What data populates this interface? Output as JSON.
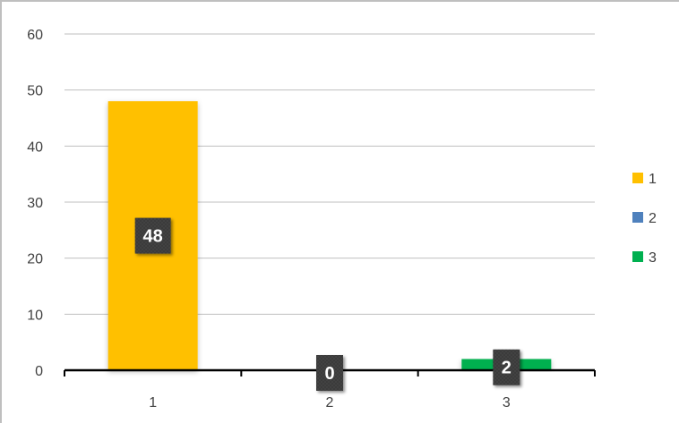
{
  "chart_data": {
    "type": "bar",
    "categories": [
      "1",
      "2",
      "3"
    ],
    "values": [
      48,
      0,
      2
    ],
    "data_labels": [
      "48",
      "0",
      "2"
    ],
    "series_colors": [
      "#FFC000",
      "#4F81BD",
      "#00B050"
    ],
    "ylim": [
      0,
      60
    ],
    "yticks": [
      0,
      10,
      20,
      30,
      40,
      50,
      60
    ],
    "ytick_labels": [
      "0",
      "10",
      "20",
      "30",
      "40",
      "50",
      "60"
    ],
    "grid": true,
    "legend": {
      "position": "right",
      "entries": [
        {
          "label": "1",
          "color": "#FFC000"
        },
        {
          "label": "2",
          "color": "#4F81BD"
        },
        {
          "label": "3",
          "color": "#00B050"
        }
      ]
    },
    "title": "",
    "xlabel": "",
    "ylabel": ""
  }
}
